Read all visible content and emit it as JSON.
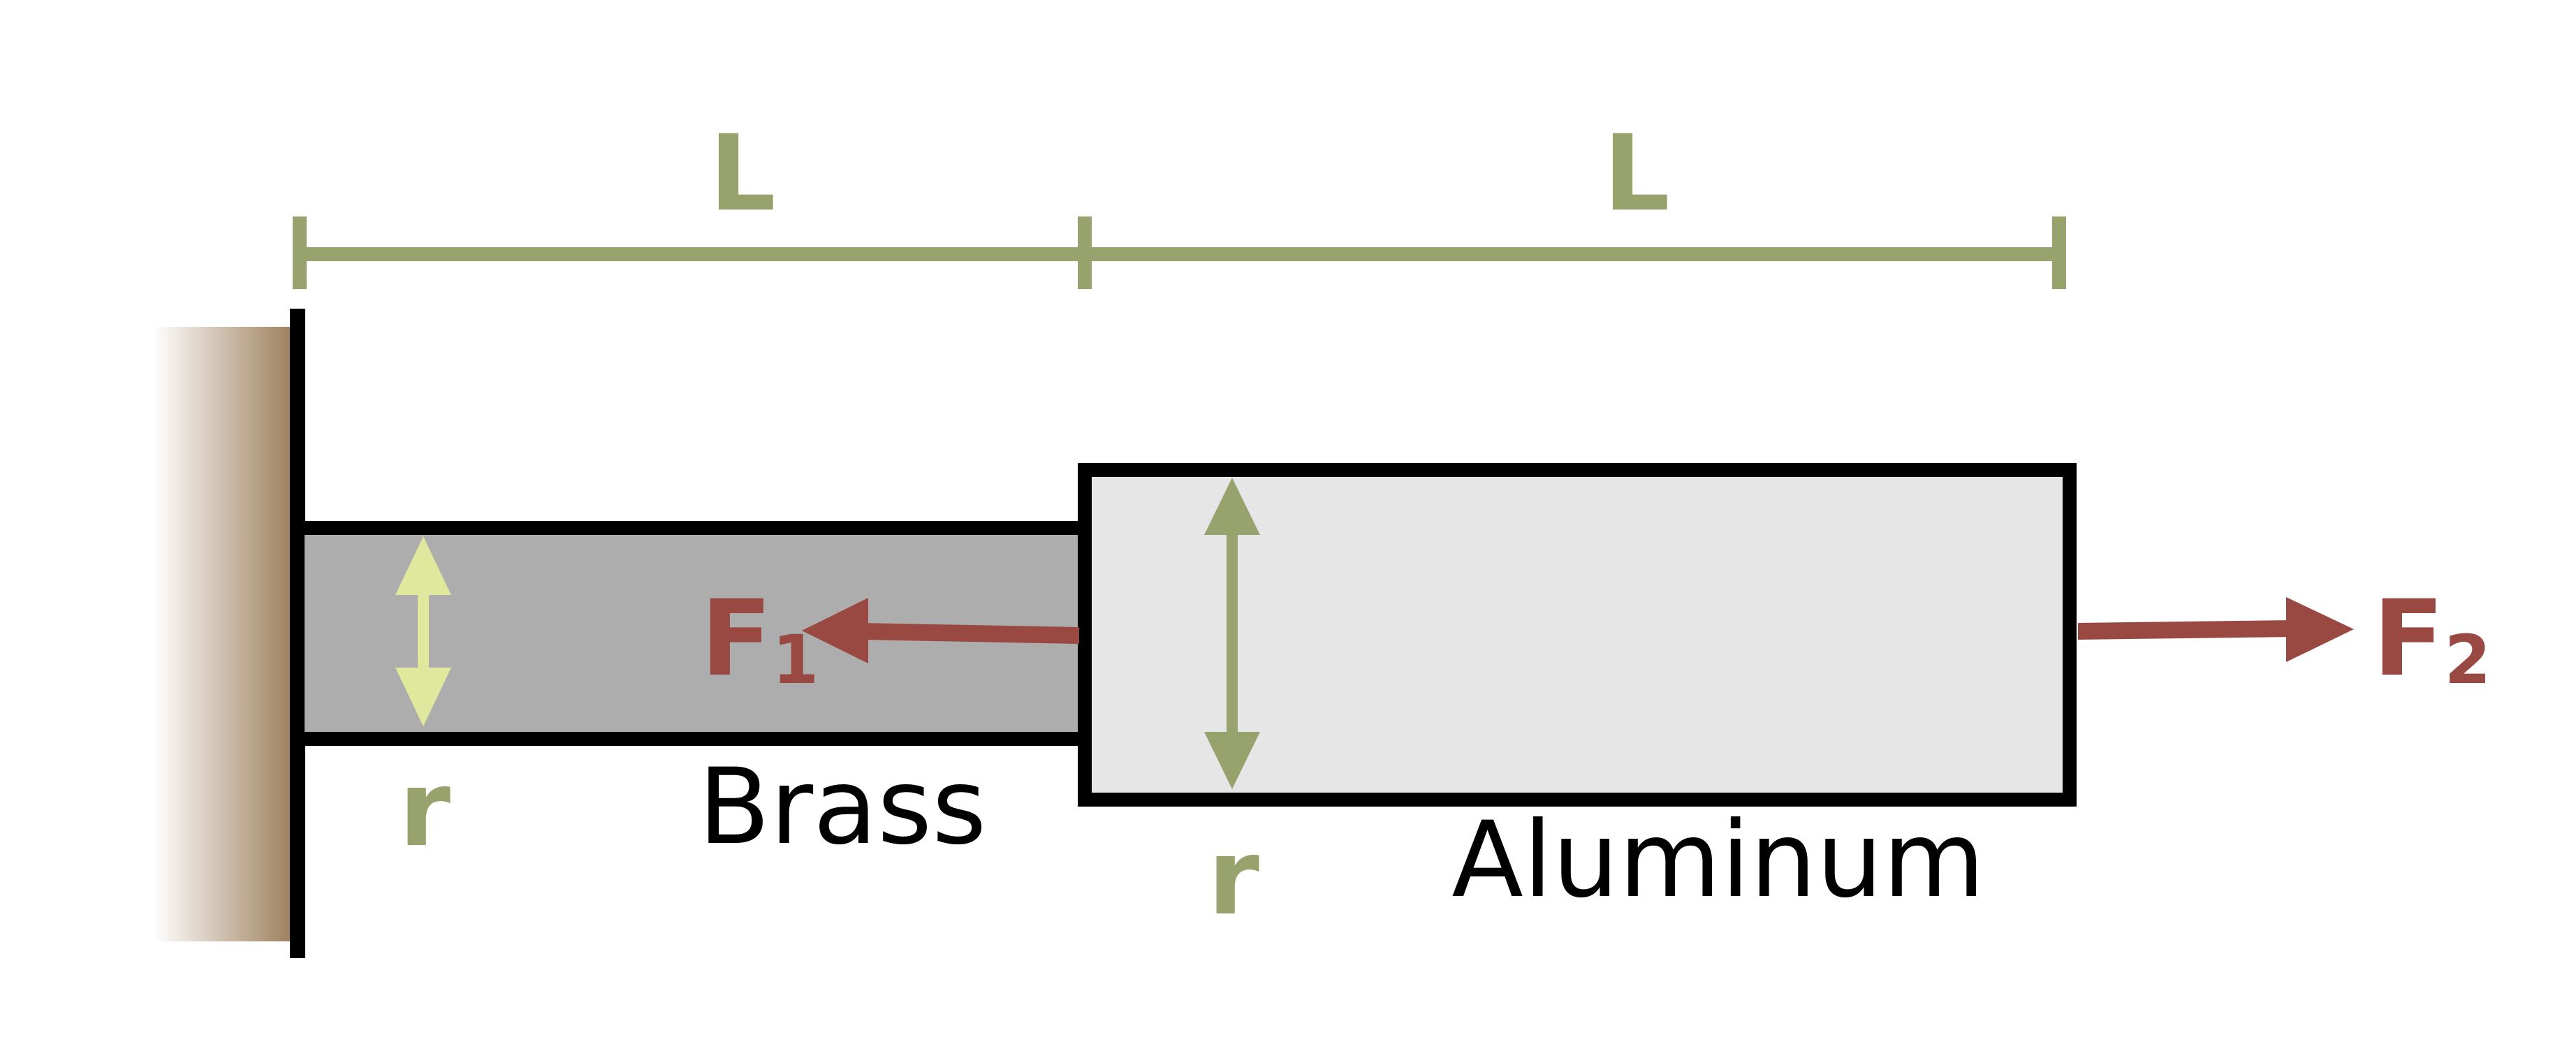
{
  "colors": {
    "dimension": "#98a26c",
    "force": "#994942",
    "brass_fill": "#adadad",
    "aluminum_fill": "#e6e6e6",
    "outline": "#000000",
    "wall": "#9a7b57",
    "brass_radius_arrow": "#dfe89d",
    "aluminum_radius_arrow": "#98a26c"
  },
  "dimensions": {
    "left_length": "L",
    "right_length": "L"
  },
  "brass": {
    "material": "Brass",
    "radius_label": "r"
  },
  "aluminum": {
    "material": "Aluminum",
    "radius_label": "r"
  },
  "forces": {
    "f1": {
      "symbol": "F",
      "subscript": "1",
      "direction": "left"
    },
    "f2": {
      "symbol": "F",
      "subscript": "2",
      "direction": "right"
    }
  },
  "icons": {
    "wall": "fixed-wall-support",
    "dimension_line": "dimension-line",
    "radius_arrow": "double-headed-arrow",
    "force_arrow": "force-arrow"
  }
}
